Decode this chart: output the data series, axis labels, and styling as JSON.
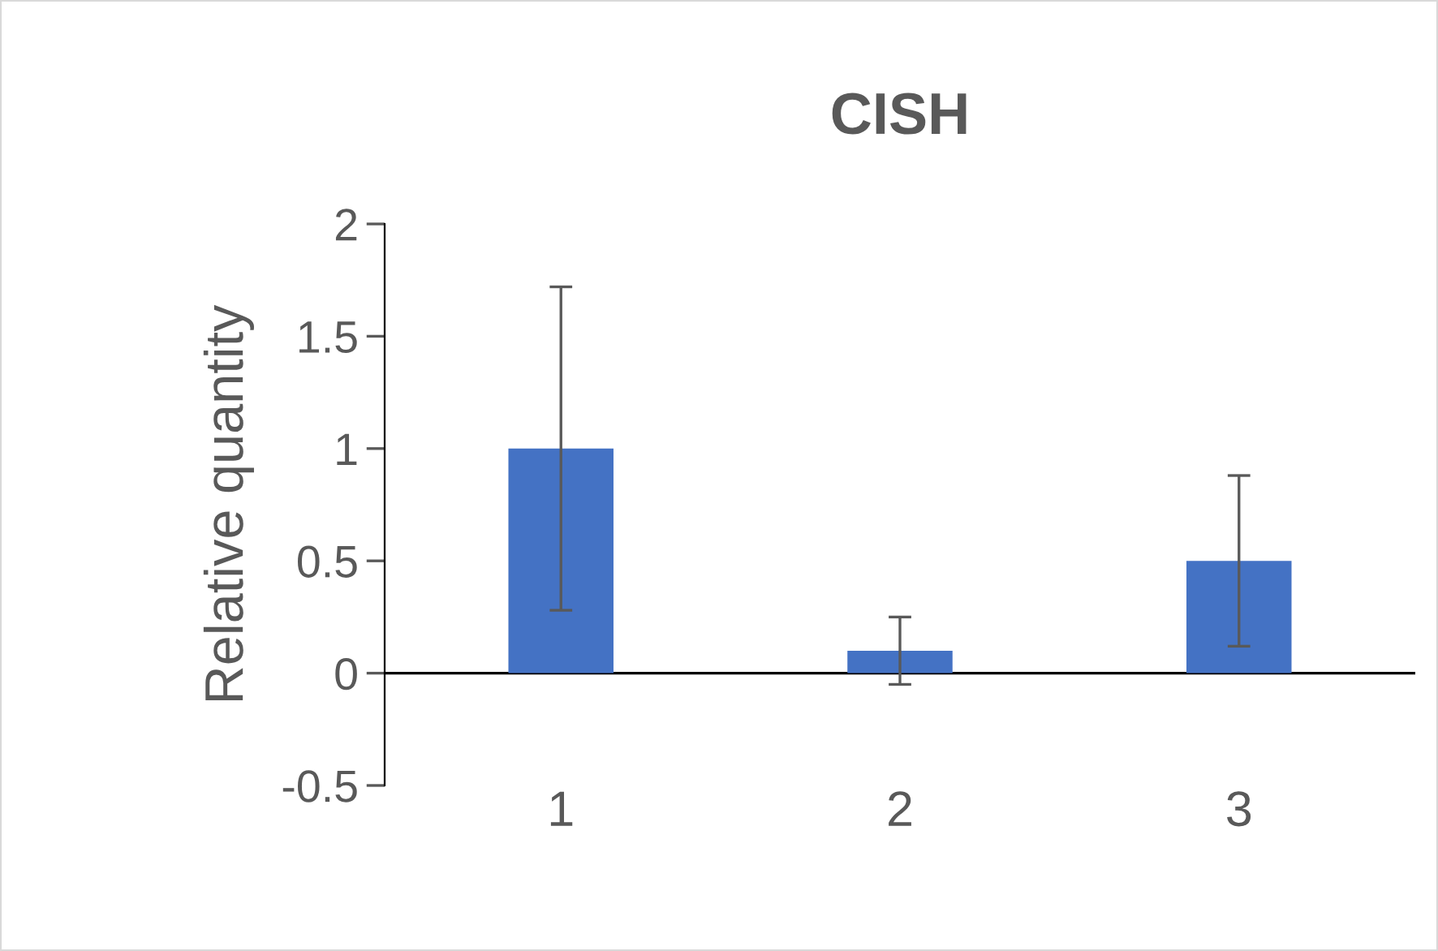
{
  "chart_data": {
    "type": "bar",
    "title": "CISH",
    "ylabel": "Relative quantity",
    "categories": [
      "1",
      "2",
      "3"
    ],
    "values": [
      1.0,
      0.1,
      0.5
    ],
    "errors": [
      0.72,
      0.15,
      0.38
    ],
    "color": "#4472c4",
    "ylim": [
      -0.5,
      2
    ],
    "yticks": [
      -0.5,
      0,
      0.5,
      1,
      1.5,
      2
    ],
    "grid": false
  }
}
